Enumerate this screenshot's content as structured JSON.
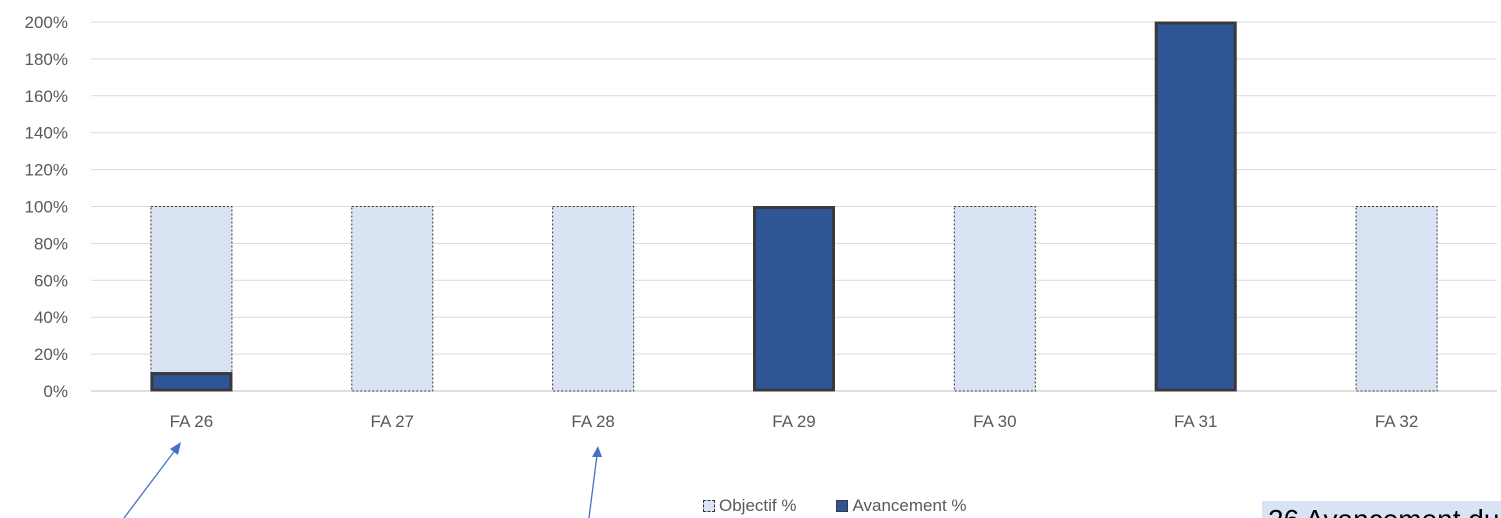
{
  "chart_data": {
    "type": "bar",
    "categories": [
      "FA 26",
      "FA 27",
      "FA 28",
      "FA 29",
      "FA 30",
      "FA 31",
      "FA 32"
    ],
    "series": [
      {
        "name": "Objectif %",
        "values": [
          100,
          100,
          100,
          100,
          100,
          100,
          100
        ],
        "color": "#dae3f3",
        "border": "dashed"
      },
      {
        "name": "Avancement %",
        "values": [
          10,
          0,
          0,
          100,
          0,
          200,
          0
        ],
        "color": "#2f5597",
        "border": "#3a3a3a"
      }
    ],
    "ylim": [
      0,
      200
    ],
    "yticks": [
      "0%",
      "20%",
      "40%",
      "60%",
      "80%",
      "100%",
      "120%",
      "140%",
      "160%",
      "180%",
      "200%"
    ],
    "grid": true,
    "legend": "bottom",
    "title": "",
    "xlabel": "",
    "ylabel": ""
  },
  "legend": {
    "objectif": "Objectif %",
    "avancement": "Avancement %"
  },
  "partial_text": "26 Avancement du"
}
